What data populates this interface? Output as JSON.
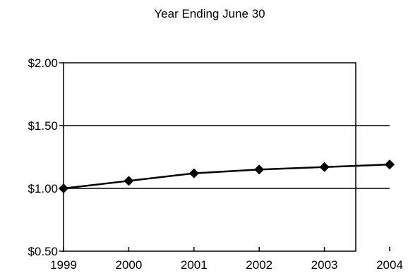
{
  "chart_data": {
    "type": "line",
    "title": "Year Ending June 30",
    "xlabel": "",
    "ylabel": "",
    "x": [
      "1999",
      "2000",
      "2001",
      "2002",
      "2003",
      "2004"
    ],
    "series": [
      {
        "values": [
          1.0,
          1.06,
          1.12,
          1.15,
          1.17,
          1.19
        ]
      }
    ],
    "ylim": [
      0.5,
      2.0
    ],
    "y_ticks": [
      2.0,
      1.5,
      1.0,
      0.5
    ],
    "y_tick_labels": [
      "$2.00",
      "$1.50",
      "$1.00",
      "$0.50"
    ],
    "grid": "horizontal",
    "legend": "none",
    "marker": "diamond",
    "colors": {
      "line": "#000000",
      "marker": "#000000",
      "axis": "#000000",
      "grid": "#000000",
      "background": "#ffffff"
    }
  }
}
